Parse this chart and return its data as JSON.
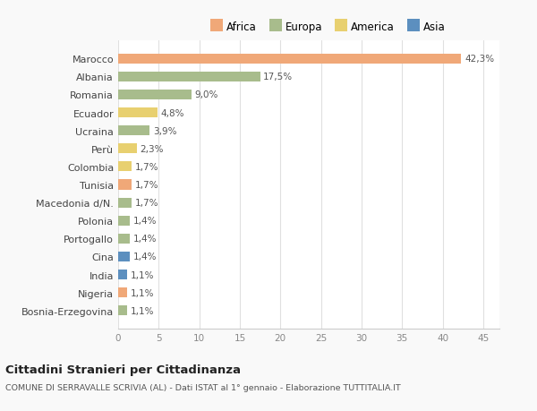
{
  "countries": [
    "Marocco",
    "Albania",
    "Romania",
    "Ecuador",
    "Ucraina",
    "Perù",
    "Colombia",
    "Tunisia",
    "Macedonia d/N.",
    "Polonia",
    "Portogallo",
    "Cina",
    "India",
    "Nigeria",
    "Bosnia-Erzegovina"
  ],
  "values": [
    42.3,
    17.5,
    9.0,
    4.8,
    3.9,
    2.3,
    1.7,
    1.7,
    1.7,
    1.4,
    1.4,
    1.4,
    1.1,
    1.1,
    1.1
  ],
  "labels": [
    "42,3%",
    "17,5%",
    "9,0%",
    "4,8%",
    "3,9%",
    "2,3%",
    "1,7%",
    "1,7%",
    "1,7%",
    "1,4%",
    "1,4%",
    "1,4%",
    "1,1%",
    "1,1%",
    "1,1%"
  ],
  "continents": [
    "Africa",
    "Europa",
    "Europa",
    "America",
    "Europa",
    "America",
    "America",
    "Africa",
    "Europa",
    "Europa",
    "Europa",
    "Asia",
    "Asia",
    "Africa",
    "Europa"
  ],
  "colors": {
    "Africa": "#F0A878",
    "Europa": "#A8BC8C",
    "America": "#E8D070",
    "Asia": "#5C8FBF"
  },
  "legend_order": [
    "Africa",
    "Europa",
    "America",
    "Asia"
  ],
  "title": "Cittadini Stranieri per Cittadinanza",
  "subtitle": "COMUNE DI SERRAVALLE SCRIVIA (AL) - Dati ISTAT al 1° gennaio - Elaborazione TUTTITALIA.IT",
  "xlim": [
    0,
    47
  ],
  "xticks": [
    0,
    5,
    10,
    15,
    20,
    25,
    30,
    35,
    40,
    45
  ],
  "background_color": "#f9f9f9",
  "bar_background": "#ffffff"
}
